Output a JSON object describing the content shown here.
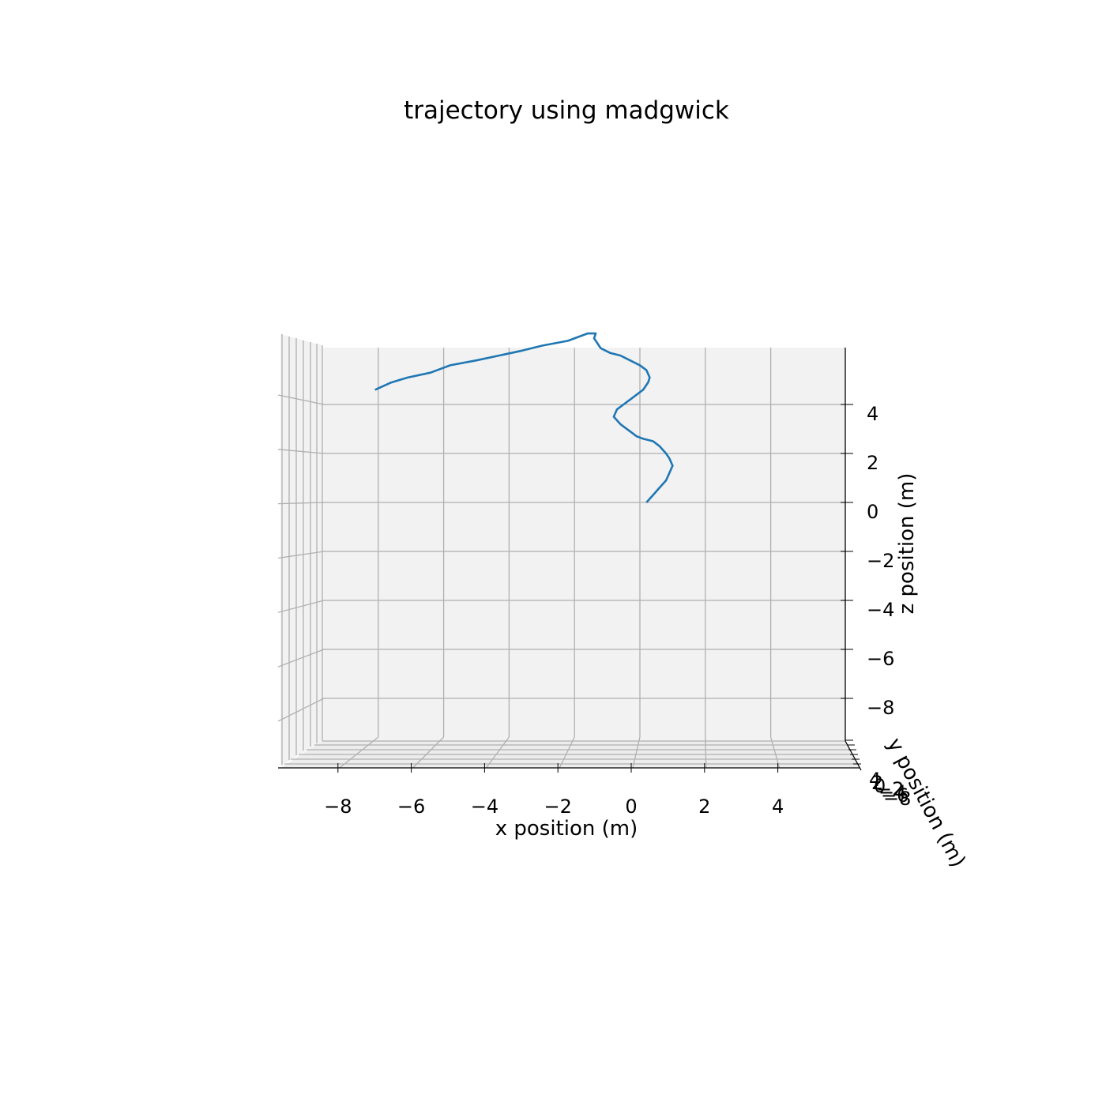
{
  "chart_data": {
    "type": "line",
    "title": "trajectory using madgwick",
    "xlabel": "x position (m)",
    "ylabel": "y position (m)",
    "zlabel": "z position (m)",
    "x_ticks": [
      -8,
      -6,
      -4,
      -2,
      0,
      2,
      4
    ],
    "z_ticks": [
      4,
      2,
      0,
      -2,
      -4,
      -6,
      -8
    ],
    "x_tick_labels": [
      "−8",
      "−6",
      "−4",
      "−2",
      "0",
      "2",
      "4"
    ],
    "z_tick_labels": [
      "4",
      "2",
      "0",
      "−2",
      "−4",
      "−6",
      "−8"
    ],
    "y_tick_labels_overlapping": [
      "4",
      "2",
      "0",
      "−2",
      "−4",
      "−6",
      "−8"
    ],
    "xlim": [
      -9.6,
      6.0
    ],
    "zlim": [
      -9.6,
      6.0
    ],
    "grid": true,
    "view": "front (looking along y axis)",
    "series": [
      {
        "name": "trajectory",
        "color": "#1f77b4",
        "x": [
          0.2,
          0.4,
          0.6,
          0.8,
          0.9,
          1.0,
          0.9,
          0.8,
          0.6,
          0.4,
          0.1,
          -0.1,
          -0.3,
          -0.5,
          -0.6,
          -0.8,
          -0.7,
          -0.5,
          -0.3,
          -0.1,
          0.1,
          0.25,
          0.3,
          0.2,
          0.0,
          -0.3,
          -0.6,
          -0.9,
          -1.2,
          -1.3,
          -1.4,
          -1.35,
          -1.6,
          -2.2,
          -3.0,
          -3.6,
          -4.3,
          -5.0,
          -5.8,
          -6.4,
          -7.1,
          -7.6,
          -8.1
        ],
        "z": [
          0.0,
          0.3,
          0.6,
          0.9,
          1.2,
          1.5,
          1.8,
          2.0,
          2.3,
          2.5,
          2.6,
          2.7,
          2.9,
          3.1,
          3.2,
          3.5,
          3.8,
          4.0,
          4.2,
          4.4,
          4.6,
          4.9,
          5.1,
          5.4,
          5.6,
          5.8,
          6.0,
          6.1,
          6.3,
          6.5,
          6.7,
          6.9,
          6.9,
          6.6,
          6.4,
          6.2,
          6.0,
          5.8,
          5.6,
          5.3,
          5.1,
          4.9,
          4.6
        ]
      }
    ]
  },
  "colors": {
    "line": "#1f77b4",
    "pane": "#f2f2f2",
    "grid": "#b0b0b0",
    "axis": "#000000"
  }
}
